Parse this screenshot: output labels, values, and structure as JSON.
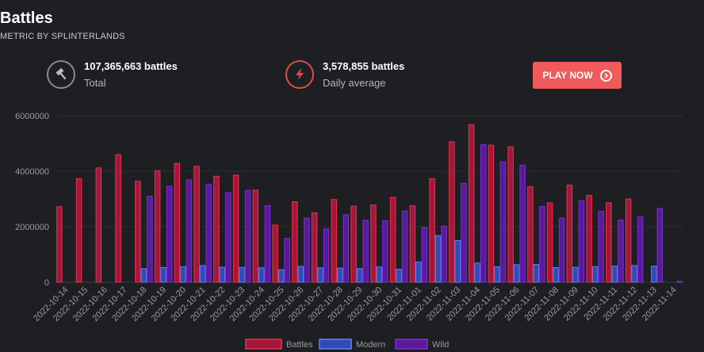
{
  "header": {
    "title": "Battles",
    "subtitle": "METRIC BY SPLINTERLANDS"
  },
  "stats": [
    {
      "value": "107,365,663 battles",
      "label": "Total",
      "icon": "hammer-icon"
    },
    {
      "value": "3,578,855 battles",
      "label": "Daily average",
      "icon": "lightning-icon"
    }
  ],
  "play_button": {
    "label": "PLAY NOW"
  },
  "colors": {
    "battles_fill": "#a3183a",
    "battles_stroke": "#e8334e",
    "modern_fill": "#2e4cb3",
    "modern_stroke": "#6b7ef2",
    "wild_fill": "#5a1a9e",
    "wild_stroke": "#7c2fd1"
  },
  "chart_data": {
    "type": "bar",
    "categories": [
      "2022-10-14",
      "2022-10-15",
      "2022-10-16",
      "2022-10-17",
      "2022-10-18",
      "2022-10-19",
      "2022-10-20",
      "2022-10-21",
      "2022-10-22",
      "2022-10-23",
      "2022-10-24",
      "2022-10-25",
      "2022-10-26",
      "2022-10-27",
      "2022-10-28",
      "2022-10-29",
      "2022-10-30",
      "2022-10-31",
      "2022-11-01",
      "2022-11-02",
      "2022-11-03",
      "2022-11-04",
      "2022-11-05",
      "2022-11-06",
      "2022-11-07",
      "2022-11-08",
      "2022-11-09",
      "2022-11-10",
      "2022-11-11",
      "2022-11-12",
      "2022-11-13",
      "2022-11-14"
    ],
    "series": [
      {
        "name": "Battles",
        "values": [
          2720000,
          3730000,
          4120000,
          4600000,
          3640000,
          4020000,
          4280000,
          4180000,
          3820000,
          3860000,
          3320000,
          2060000,
          2900000,
          2500000,
          2980000,
          2740000,
          2780000,
          3060000,
          2760000,
          3730000,
          5060000,
          5680000,
          4940000,
          4880000,
          3450000,
          2860000,
          3500000,
          3130000,
          2860000,
          3000000,
          null,
          null
        ]
      },
      {
        "name": "Modern",
        "values": [
          null,
          null,
          null,
          null,
          490000,
          530000,
          560000,
          600000,
          540000,
          530000,
          520000,
          450000,
          570000,
          520000,
          510000,
          490000,
          550000,
          470000,
          730000,
          1680000,
          1500000,
          690000,
          560000,
          630000,
          640000,
          530000,
          540000,
          560000,
          580000,
          600000,
          580000,
          null
        ]
      },
      {
        "name": "Wild",
        "values": [
          null,
          null,
          null,
          null,
          3100000,
          3460000,
          3690000,
          3520000,
          3230000,
          3310000,
          2760000,
          1580000,
          2310000,
          1910000,
          2430000,
          2230000,
          2210000,
          2570000,
          1970000,
          2020000,
          3560000,
          4960000,
          4340000,
          4220000,
          2730000,
          2310000,
          2940000,
          2560000,
          2240000,
          2350000,
          2660000,
          30000
        ]
      }
    ],
    "ylim": [
      0,
      6000000
    ],
    "yticks": [
      "0",
      "2000000",
      "4000000",
      "6000000"
    ],
    "legend": "bottom-center",
    "grid": true
  }
}
